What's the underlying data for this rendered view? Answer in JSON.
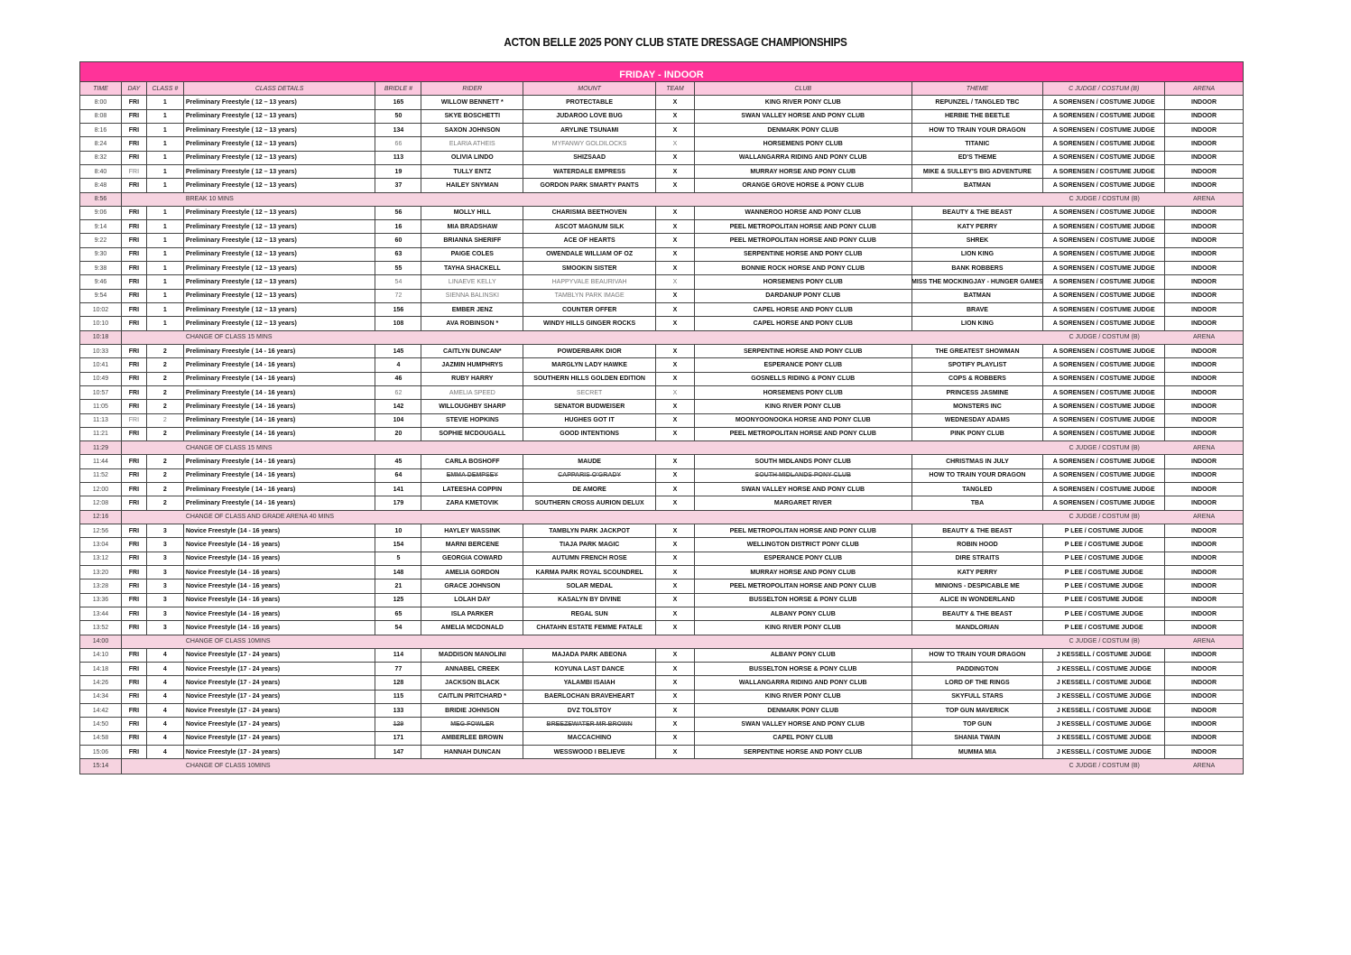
{
  "title": "ACTON BELLE 2025 PONY CLUB STATE DRESSAGE CHAMPIONSHIPS",
  "section": "FRIDAY - INDOOR",
  "colors": {
    "banner": "#ff3399",
    "header_row": "#fbc8de",
    "break_row": "#f6d3e0"
  },
  "columns": [
    "TIME",
    "DAY",
    "CLASS #",
    "CLASS DETAILS",
    "BRIDLE #",
    "RIDER",
    "MOUNT",
    "TEAM",
    "CLUB",
    "THEME",
    "C JUDGE / COSTUM (B)",
    "ARENA"
  ],
  "rows": [
    {
      "c": [
        "8:00",
        "FRI",
        "1",
        "Preliminary Freestyle ( 12 – 13 years)",
        "165",
        "WILLOW BENNETT *",
        "PROTECTABLE",
        "X",
        "KING RIVER PONY CLUB",
        "REPUNZEL / TANGLED TBC",
        "A SORENSEN / COSTUME JUDGE",
        "INDOOR"
      ]
    },
    {
      "c": [
        "8:08",
        "FRI",
        "1",
        "Preliminary Freestyle ( 12 – 13 years)",
        "50",
        "SKYE BOSCHETTI",
        "JUDAROO LOVE BUG",
        "X",
        "SWAN VALLEY HORSE AND PONY CLUB",
        "HERBIE THE BEETLE",
        "A SORENSEN / COSTUME JUDGE",
        "INDOOR"
      ]
    },
    {
      "c": [
        "8:16",
        "FRI",
        "1",
        "Preliminary Freestyle ( 12 – 13 years)",
        "134",
        "SAXON JOHNSON",
        "ARYLINE TSUNAMI",
        "X",
        "DENMARK PONY CLUB",
        "HOW TO TRAIN YOUR DRAGON",
        "A SORENSEN / COSTUME JUDGE",
        "INDOOR"
      ]
    },
    {
      "c": [
        "8:24",
        "FRI",
        "1",
        "Preliminary Freestyle ( 12 – 13 years)",
        "66",
        "ELARIA ATHEIS",
        "MYFANWY GOLDILOCKS",
        "X",
        "HORSEMENS PONY CLUB",
        "TITANIC",
        "A SORENSEN / COSTUME JUDGE",
        "INDOOR"
      ],
      "muted": [
        4,
        5,
        6,
        7
      ]
    },
    {
      "c": [
        "8:32",
        "FRI",
        "1",
        "Preliminary Freestyle ( 12 – 13 years)",
        "113",
        "OLIVIA LINDO",
        "SHIZSAAD",
        "X",
        "WALLANGARRA RIDING AND PONY CLUB",
        "ED'S THEME",
        "A SORENSEN / COSTUME JUDGE",
        "INDOOR"
      ]
    },
    {
      "c": [
        "8:40",
        "FRI",
        "1",
        "Preliminary Freestyle ( 12 – 13 years)",
        "19",
        "TULLY ENTZ",
        "WATERDALE EMPRESS",
        "X",
        "MURRAY HORSE AND PONY CLUB",
        "MIKE & SULLEY'S BIG ADVENTURE",
        "A SORENSEN / COSTUME JUDGE",
        "INDOOR"
      ],
      "muted": [
        1
      ]
    },
    {
      "c": [
        "8:48",
        "FRI",
        "1",
        "Preliminary Freestyle ( 12 – 13 years)",
        "37",
        "HAILEY SNYMAN",
        "GORDON PARK SMARTY PANTS",
        "X",
        "ORANGE GROVE HORSE & PONY CLUB",
        "BATMAN",
        "A SORENSEN / COSTUME JUDGE",
        "INDOOR"
      ]
    },
    {
      "break": true,
      "time": "8:56",
      "text": "BREAK 10 MINS",
      "judge": "C JUDGE / COSTUM (B)",
      "arena": "ARENA"
    },
    {
      "c": [
        "9:06",
        "FRI",
        "1",
        "Preliminary Freestyle ( 12 – 13 years)",
        "56",
        "MOLLY HILL",
        "CHARISMA BEETHOVEN",
        "X",
        "WANNEROO HORSE AND PONY CLUB",
        "BEAUTY & THE BEAST",
        "A SORENSEN / COSTUME JUDGE",
        "INDOOR"
      ]
    },
    {
      "c": [
        "9:14",
        "FRI",
        "1",
        "Preliminary Freestyle ( 12 – 13 years)",
        "16",
        "MIA BRADSHAW",
        "ASCOT MAGNUM SILK",
        "X",
        "PEEL METROPOLITAN HORSE AND PONY CLUB",
        "KATY PERRY",
        "A SORENSEN / COSTUME JUDGE",
        "INDOOR"
      ]
    },
    {
      "c": [
        "9:22",
        "FRI",
        "1",
        "Preliminary Freestyle ( 12 – 13 years)",
        "60",
        "BRIANNA SHERIFF",
        "ACE OF HEARTS",
        "X",
        "PEEL METROPOLITAN HORSE AND PONY CLUB",
        "SHREK",
        "A SORENSEN / COSTUME JUDGE",
        "INDOOR"
      ]
    },
    {
      "c": [
        "9:30",
        "FRI",
        "1",
        "Preliminary Freestyle ( 12 – 13 years)",
        "63",
        "PAIGE COLES",
        "OWENDALE WILLIAM OF OZ",
        "X",
        "SERPENTINE HORSE AND PONY CLUB",
        "LION KING",
        "A SORENSEN / COSTUME JUDGE",
        "INDOOR"
      ]
    },
    {
      "c": [
        "9:38",
        "FRI",
        "1",
        "Preliminary Freestyle ( 12 – 13 years)",
        "55",
        "TAYHA SHACKELL",
        "SMOOKIN SISTER",
        "X",
        "BONNIE ROCK HORSE AND PONY CLUB",
        "BANK ROBBERS",
        "A SORENSEN / COSTUME JUDGE",
        "INDOOR"
      ]
    },
    {
      "c": [
        "9:46",
        "FRI",
        "1",
        "Preliminary Freestyle ( 12 – 13 years)",
        "54",
        "LINAEVE KELLY",
        "HAPPYVALE BEAURIVAH",
        "X",
        "HORSEMENS PONY CLUB",
        "MISS THE MOCKINGJAY - HUNGER GAMES",
        "A SORENSEN / COSTUME JUDGE",
        "INDOOR"
      ],
      "muted": [
        4,
        5,
        6,
        7
      ]
    },
    {
      "c": [
        "9:54",
        "FRI",
        "1",
        "Preliminary Freestyle ( 12 – 13 years)",
        "72",
        "SIENNA BALINSKI",
        "TAMBLYN PARK IMAGE",
        "X",
        "DARDANUP PONY CLUB",
        "BATMAN",
        "A SORENSEN / COSTUME JUDGE",
        "INDOOR"
      ],
      "muted": [
        4,
        5,
        6
      ]
    },
    {
      "c": [
        "10:02",
        "FRI",
        "1",
        "Preliminary Freestyle ( 12 – 13 years)",
        "156",
        "EMBER JENZ",
        "COUNTER OFFER",
        "X",
        "CAPEL HORSE AND PONY CLUB",
        "BRAVE",
        "A SORENSEN / COSTUME JUDGE",
        "INDOOR"
      ]
    },
    {
      "c": [
        "10:10",
        "FRI",
        "1",
        "Preliminary Freestyle ( 12 – 13 years)",
        "108",
        "AVA ROBINSON *",
        "WINDY HILLS GINGER ROCKS",
        "X",
        "CAPEL HORSE AND PONY CLUB",
        "LION KING",
        "A SORENSEN / COSTUME JUDGE",
        "INDOOR"
      ]
    },
    {
      "break": true,
      "time": "10:18",
      "text": "CHANGE OF CLASS 15 MINS",
      "judge": "C JUDGE / COSTUM (B)",
      "arena": "ARENA"
    },
    {
      "c": [
        "10:33",
        "FRI",
        "2",
        "Preliminary Freestyle ( 14 - 16 years)",
        "145",
        "CAITLYN DUNCAN*",
        "POWDERBARK DIOR",
        "X",
        "SERPENTINE HORSE AND PONY CLUB",
        "THE GREATEST SHOWMAN",
        "A SORENSEN / COSTUME JUDGE",
        "INDOOR"
      ]
    },
    {
      "c": [
        "10:41",
        "FRI",
        "2",
        "Preliminary Freestyle ( 14 - 16 years)",
        "4",
        "JAZMIN HUMPHRYS",
        "MARGLYN LADY HAWKE",
        "X",
        "ESPERANCE PONY CLUB",
        "SPOTIFY PLAYLIST",
        "A SORENSEN / COSTUME JUDGE",
        "INDOOR"
      ]
    },
    {
      "c": [
        "10:49",
        "FRI",
        "2",
        "Preliminary Freestyle ( 14 - 16 years)",
        "46",
        "RUBY HARRY",
        "SOUTHERN HILLS GOLDEN EDITION",
        "X",
        "GOSNELLS RIDING & PONY CLUB",
        "COPS & ROBBERS",
        "A SORENSEN / COSTUME JUDGE",
        "INDOOR"
      ]
    },
    {
      "c": [
        "10:57",
        "FRI",
        "2",
        "Preliminary Freestyle ( 14 - 16 years)",
        "62",
        "AMELIA SPEED",
        "SECRET",
        "X",
        "HORSEMENS PONY CLUB",
        "PRINCESS JASMINE",
        "A SORENSEN / COSTUME JUDGE",
        "INDOOR"
      ],
      "muted": [
        4,
        5,
        6,
        7
      ]
    },
    {
      "c": [
        "11:05",
        "FRI",
        "2",
        "Preliminary Freestyle ( 14 - 16 years)",
        "142",
        "WILLOUGHBY SHARP",
        "SENATOR BUDWEISER",
        "X",
        "KING RIVER PONY CLUB",
        "MONSTERS INC",
        "A SORENSEN / COSTUME JUDGE",
        "INDOOR"
      ]
    },
    {
      "c": [
        "11:13",
        "FRI",
        "2",
        "Preliminary Freestyle ( 14 - 16 years)",
        "104",
        "STEVIE HOPKINS",
        "HUGHES GOT IT",
        "X",
        "MOONYOONOOKA HORSE AND PONY CLUB",
        "WEDNESDAY ADAMS",
        "A SORENSEN / COSTUME JUDGE",
        "INDOOR"
      ],
      "muted": [
        1,
        2
      ]
    },
    {
      "c": [
        "11:21",
        "FRI",
        "2",
        "Preliminary Freestyle ( 14 - 16 years)",
        "20",
        "SOPHIE MCDOUGALL",
        "GOOD INTENTIONS",
        "X",
        "PEEL METROPOLITAN HORSE AND PONY CLUB",
        "PINK PONY CLUB",
        "A SORENSEN / COSTUME JUDGE",
        "INDOOR"
      ]
    },
    {
      "break": true,
      "time": "11:29",
      "text": "CHANGE OF CLASS 15 MINS",
      "judge": "C JUDGE / COSTUM (B)",
      "arena": "ARENA"
    },
    {
      "c": [
        "11:44",
        "FRI",
        "2",
        "Preliminary Freestyle ( 14 - 16 years)",
        "45",
        "CARLA BOSHOFF",
        "MAUDE",
        "X",
        "SOUTH MIDLANDS PONY CLUB",
        "CHRISTMAS IN JULY",
        "A SORENSEN / COSTUME JUDGE",
        "INDOOR"
      ]
    },
    {
      "c": [
        "11:52",
        "FRI",
        "2",
        "Preliminary Freestyle ( 14 - 16 years)",
        "64",
        "EMMA DEMPSEY",
        "CAPPARIS O'GRADY",
        "X",
        "SOUTH MIDLANDS PONY CLUB",
        "HOW TO TRAIN YOUR DRAGON",
        "A SORENSEN / COSTUME JUDGE",
        "INDOOR"
      ],
      "strike": [
        5,
        6,
        8
      ]
    },
    {
      "c": [
        "12:00",
        "FRI",
        "2",
        "Preliminary Freestyle ( 14 - 16 years)",
        "141",
        "LATEESHA COPPIN",
        "DE AMORE",
        "X",
        "SWAN VALLEY HORSE AND PONY CLUB",
        "TANGLED",
        "A SORENSEN / COSTUME JUDGE",
        "INDOOR"
      ]
    },
    {
      "c": [
        "12:08",
        "FRI",
        "2",
        "Preliminary Freestyle ( 14 - 16 years)",
        "179",
        "ZARA KMETOVIK",
        "SOUTHERN CROSS AURION DELUX",
        "X",
        "MARGARET RIVER",
        "TBA",
        "A SORENSEN / COSTUME JUDGE",
        "INDOOR"
      ]
    },
    {
      "break": true,
      "time": "12:16",
      "text": "CHANGE OF CLASS AND GRADE ARENA 40 MINS",
      "judge": "C JUDGE / COSTUM (B)",
      "arena": "ARENA"
    },
    {
      "c": [
        "12:56",
        "FRI",
        "3",
        "Novice Freestyle (14 - 16 years)",
        "10",
        "HAYLEY WASSINK",
        "TAMBLYN PARK JACKPOT",
        "X",
        "PEEL METROPOLITAN HORSE AND PONY CLUB",
        "BEAUTY & THE BEAST",
        "P LEE / COSTUME JUDGE",
        "INDOOR"
      ]
    },
    {
      "c": [
        "13:04",
        "FRI",
        "3",
        "Novice Freestyle (14 - 16 years)",
        "154",
        "MARNI BERCENE",
        "TIAJA PARK MAGIC",
        "X",
        "WELLINGTON DISTRICT PONY CLUB",
        "ROBIN HOOD",
        "P LEE / COSTUME JUDGE",
        "INDOOR"
      ]
    },
    {
      "c": [
        "13:12",
        "FRI",
        "3",
        "Novice Freestyle (14 - 16 years)",
        "5",
        "GEORGIA COWARD",
        "AUTUMN FRENCH ROSE",
        "X",
        "ESPERANCE PONY CLUB",
        "DIRE STRAITS",
        "P LEE / COSTUME JUDGE",
        "INDOOR"
      ]
    },
    {
      "c": [
        "13:20",
        "FRI",
        "3",
        "Novice Freestyle (14 - 16 years)",
        "148",
        "AMELIA GORDON",
        "KARMA PARK ROYAL SCOUNDREL",
        "X",
        "MURRAY HORSE AND PONY CLUB",
        "KATY PERRY",
        "P LEE / COSTUME JUDGE",
        "INDOOR"
      ]
    },
    {
      "c": [
        "13:28",
        "FRI",
        "3",
        "Novice Freestyle (14 - 16 years)",
        "21",
        "GRACE JOHNSON",
        "SOLAR MEDAL",
        "X",
        "PEEL METROPOLITAN HORSE AND PONY CLUB",
        "MINIONS - DESPICABLE ME",
        "P LEE / COSTUME JUDGE",
        "INDOOR"
      ]
    },
    {
      "c": [
        "13:36",
        "FRI",
        "3",
        "Novice Freestyle (14 - 16 years)",
        "125",
        "LOLAH DAY",
        "KASALYN BY DIVINE",
        "X",
        "BUSSELTON HORSE & PONY CLUB",
        "ALICE IN WONDERLAND",
        "P LEE / COSTUME JUDGE",
        "INDOOR"
      ]
    },
    {
      "c": [
        "13:44",
        "FRI",
        "3",
        "Novice Freestyle (14 - 16 years)",
        "65",
        "ISLA PARKER",
        "REGAL SUN",
        "X",
        "ALBANY PONY CLUB",
        "BEAUTY & THE BEAST",
        "P LEE / COSTUME JUDGE",
        "INDOOR"
      ]
    },
    {
      "c": [
        "13:52",
        "FRI",
        "3",
        "Novice Freestyle (14 - 16 years)",
        "54",
        "AMELIA MCDONALD",
        "CHATAHN ESTATE FEMME FATALE",
        "X",
        "KING RIVER PONY CLUB",
        "MANDLORIAN",
        "P LEE / COSTUME JUDGE",
        "INDOOR"
      ]
    },
    {
      "break": true,
      "time": "14:00",
      "text": "CHANGE OF CLASS 10MINS",
      "judge": "C JUDGE / COSTUM (B)",
      "arena": "ARENA"
    },
    {
      "c": [
        "14:10",
        "FRI",
        "4",
        "Novice Freestyle (17 - 24 years)",
        "114",
        "MADDISON MANOLINI",
        "MAJADA PARK ABEONA",
        "X",
        "ALBANY PONY CLUB",
        "HOW TO TRAIN YOUR DRAGON",
        "J KESSELL / COSTUME JUDGE",
        "INDOOR"
      ]
    },
    {
      "c": [
        "14:18",
        "FRI",
        "4",
        "Novice Freestyle (17 - 24 years)",
        "77",
        "ANNABEL CREEK",
        "KOYUNA LAST DANCE",
        "X",
        "BUSSELTON HORSE & PONY CLUB",
        "PADDINGTON",
        "J KESSELL / COSTUME JUDGE",
        "INDOOR"
      ]
    },
    {
      "c": [
        "14:26",
        "FRI",
        "4",
        "Novice Freestyle (17 - 24 years)",
        "128",
        "JACKSON BLACK",
        "YALAMBI ISAIAH",
        "X",
        "WALLANGARRA RIDING AND PONY CLUB",
        "LORD OF THE RINGS",
        "J KESSELL / COSTUME JUDGE",
        "INDOOR"
      ]
    },
    {
      "c": [
        "14:34",
        "FRI",
        "4",
        "Novice Freestyle (17 - 24 years)",
        "115",
        "CAITLIN PRITCHARD *",
        "BAERLOCHAN BRAVEHEART",
        "X",
        "KING RIVER PONY CLUB",
        "SKYFULL STARS",
        "J KESSELL / COSTUME JUDGE",
        "INDOOR"
      ]
    },
    {
      "c": [
        "14:42",
        "FRI",
        "4",
        "Novice Freestyle (17 - 24 years)",
        "133",
        "BRIDIE JOHNSON",
        "DVZ TOLSTOY",
        "X",
        "DENMARK PONY CLUB",
        "TOP GUN MAVERICK",
        "J KESSELL / COSTUME JUDGE",
        "INDOOR"
      ]
    },
    {
      "c": [
        "14:50",
        "FRI",
        "4",
        "Novice Freestyle (17 - 24 years)",
        "129",
        "MEG FOWLER",
        "BREEZEWATER MR BROWN",
        "X",
        "SWAN VALLEY HORSE AND PONY CLUB",
        "TOP GUN",
        "J KESSELL / COSTUME JUDGE",
        "INDOOR"
      ],
      "strike": [
        4,
        5,
        6
      ]
    },
    {
      "c": [
        "14:58",
        "FRI",
        "4",
        "Novice Freestyle (17 - 24 years)",
        "171",
        "AMBERLEE BROWN",
        "MACCACHINO",
        "X",
        "CAPEL PONY CLUB",
        "SHANIA TWAIN",
        "J KESSELL / COSTUME JUDGE",
        "INDOOR"
      ]
    },
    {
      "c": [
        "15:06",
        "FRI",
        "4",
        "Novice Freestyle (17 - 24 years)",
        "147",
        "HANNAH DUNCAN",
        "WESSWOOD I BELIEVE",
        "X",
        "SERPENTINE HORSE AND PONY CLUB",
        "MUMMA MIA",
        "J KESSELL / COSTUME JUDGE",
        "INDOOR"
      ]
    },
    {
      "break": true,
      "time": "15:14",
      "text": "CHANGE OF CLASS 10MINS",
      "judge": "C JUDGE / COSTUM (B)",
      "arena": "ARENA"
    }
  ]
}
